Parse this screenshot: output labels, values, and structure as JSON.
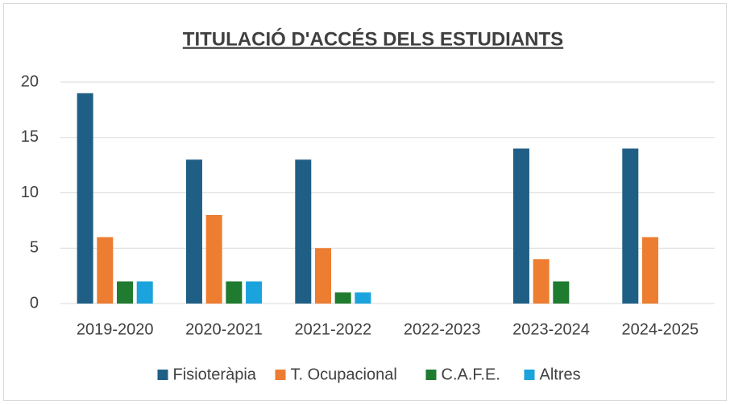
{
  "chart_data": {
    "type": "bar",
    "title": "TITULACIÓ D'ACCÉS DELS ESTUDIANTS",
    "categories": [
      "2019-2020",
      "2020-2021",
      "2021-2022",
      "2022-2023",
      "2023-2024",
      "2024-2025"
    ],
    "series": [
      {
        "name": "Fisioteràpia",
        "color": "#1f5f85",
        "values": [
          19,
          13,
          13,
          0,
          14,
          14
        ]
      },
      {
        "name": "T. Ocupacional",
        "color": "#ed7d31",
        "values": [
          6,
          8,
          5,
          0,
          4,
          6
        ]
      },
      {
        "name": "C.A.F.E.",
        "color": "#1e7b2f",
        "values": [
          2,
          2,
          1,
          0,
          2,
          0
        ]
      },
      {
        "name": "Altres",
        "color": "#1aa3dc",
        "values": [
          2,
          2,
          1,
          0,
          0,
          0
        ]
      }
    ],
    "ylim": [
      0,
      20
    ],
    "yticks": [
      0,
      5,
      10,
      15,
      20
    ],
    "grid": true,
    "legend": "bottom"
  }
}
